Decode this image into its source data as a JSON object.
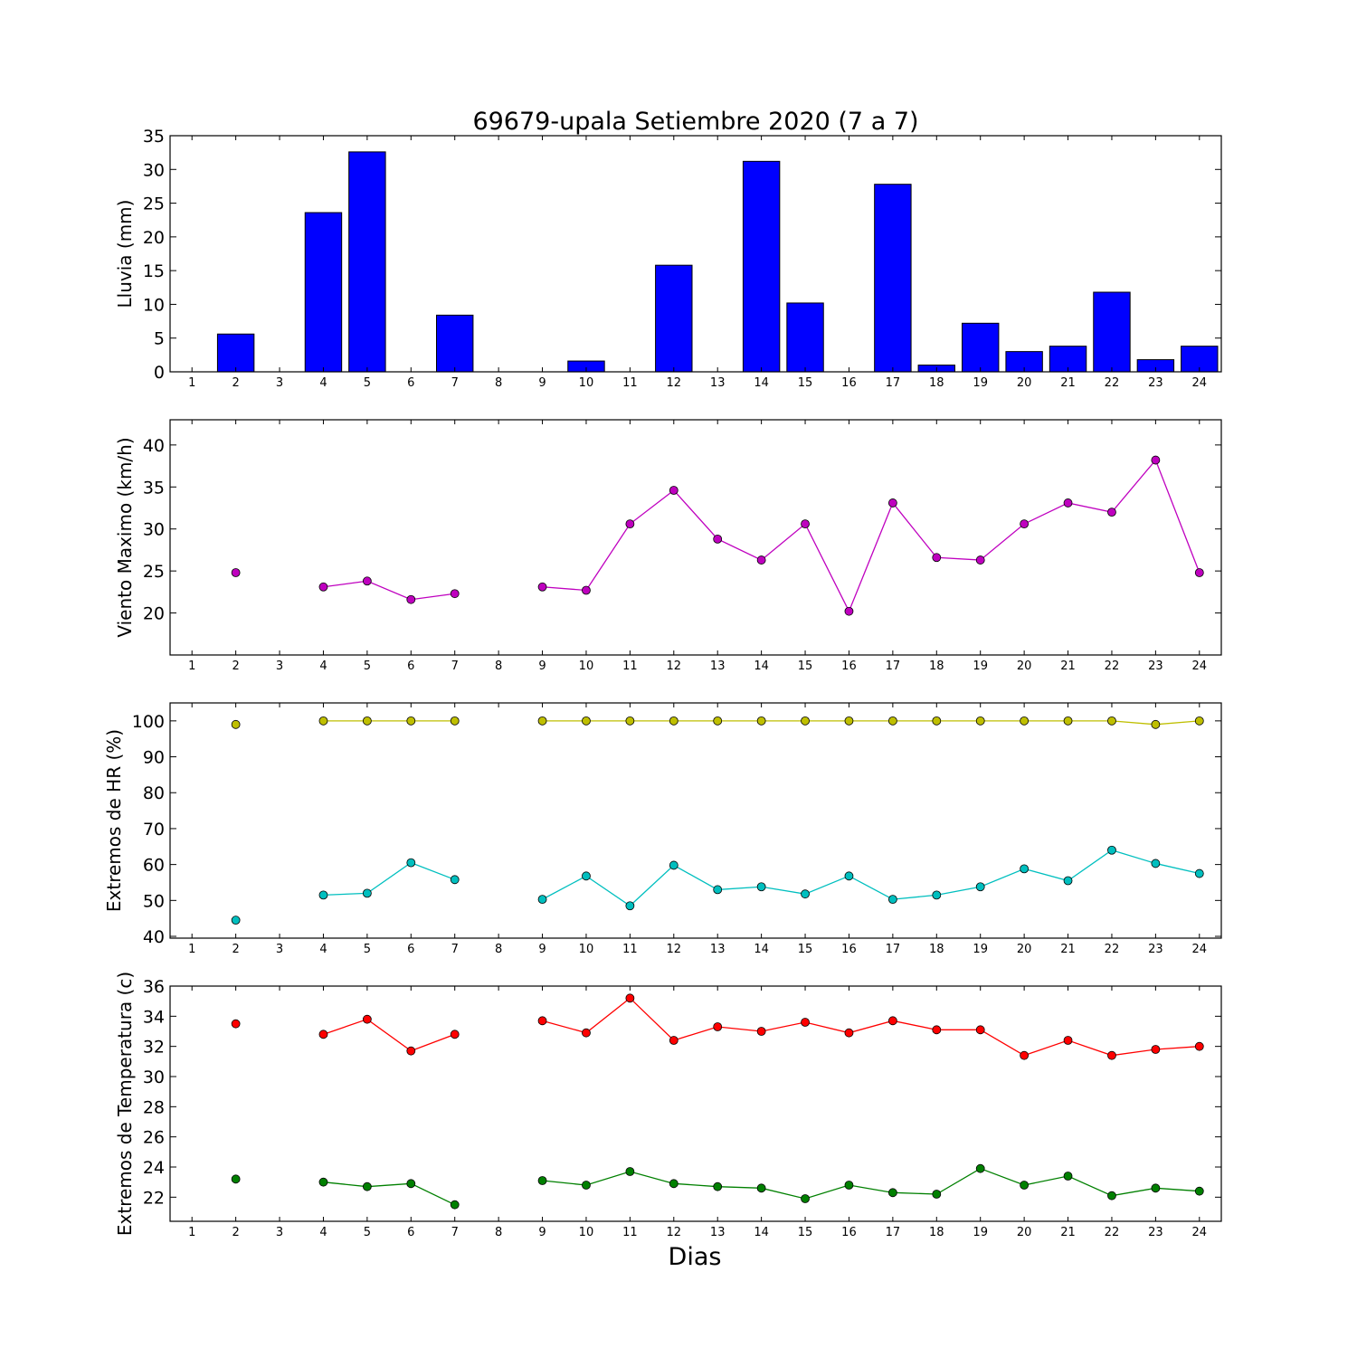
{
  "title": "69679-upala Setiembre 2020  (7 a 7)",
  "xlabel": "Dias",
  "chart_data": [
    {
      "type": "bar",
      "ylabel": "Lluvia (mm)",
      "categories": [
        1,
        2,
        3,
        4,
        5,
        6,
        7,
        8,
        9,
        10,
        11,
        12,
        13,
        14,
        15,
        16,
        17,
        18,
        19,
        20,
        21,
        22,
        23,
        24
      ],
      "ylim": [
        0,
        35
      ],
      "yticks": [
        0,
        5,
        10,
        15,
        20,
        25,
        30,
        35
      ],
      "grid": false,
      "series": [
        {
          "color": "#0000ff",
          "values": [
            0,
            5.6,
            0,
            23.6,
            32.6,
            0,
            8.4,
            0,
            0,
            1.6,
            0,
            15.8,
            0,
            31.2,
            10.2,
            0,
            27.8,
            1.0,
            7.2,
            3.0,
            3.8,
            11.8,
            1.8,
            3.8
          ]
        }
      ]
    },
    {
      "type": "line",
      "ylabel": "Viento Maximo (km/h)",
      "categories": [
        1,
        2,
        3,
        4,
        5,
        6,
        7,
        8,
        9,
        10,
        11,
        12,
        13,
        14,
        15,
        16,
        17,
        18,
        19,
        20,
        21,
        22,
        23,
        24
      ],
      "ylim": [
        15,
        43
      ],
      "yticks": [
        20,
        25,
        30,
        35,
        40
      ],
      "grid": false,
      "series": [
        {
          "color": "#bf00bf",
          "values": [
            null,
            24.8,
            null,
            23.1,
            23.8,
            21.6,
            22.3,
            null,
            23.1,
            22.7,
            30.6,
            34.6,
            28.8,
            26.3,
            30.6,
            20.2,
            33.1,
            26.6,
            26.3,
            30.6,
            33.1,
            32.0,
            38.2,
            24.8
          ]
        }
      ]
    },
    {
      "type": "line",
      "ylabel": "Extremos de HR (%)",
      "categories": [
        1,
        2,
        3,
        4,
        5,
        6,
        7,
        8,
        9,
        10,
        11,
        12,
        13,
        14,
        15,
        16,
        17,
        18,
        19,
        20,
        21,
        22,
        23,
        24
      ],
      "ylim": [
        39.5,
        105
      ],
      "yticks": [
        40,
        50,
        60,
        70,
        80,
        90,
        100
      ],
      "grid": false,
      "series": [
        {
          "color": "#bfbf00",
          "values": [
            null,
            99,
            null,
            100,
            100,
            100,
            100,
            null,
            100,
            100,
            100,
            100,
            100,
            100,
            100,
            100,
            100,
            100,
            100,
            100,
            100,
            100,
            99,
            100
          ]
        },
        {
          "color": "#00bfbf",
          "values": [
            null,
            44.5,
            null,
            51.5,
            52,
            60.5,
            55.8,
            null,
            50.3,
            56.8,
            48.5,
            59.8,
            53,
            53.8,
            51.8,
            56.8,
            50.3,
            51.5,
            53.8,
            58.8,
            55.5,
            64,
            60.3,
            57.5
          ]
        }
      ]
    },
    {
      "type": "line",
      "ylabel": "Extremos de Temperatura (c)",
      "categories": [
        1,
        2,
        3,
        4,
        5,
        6,
        7,
        8,
        9,
        10,
        11,
        12,
        13,
        14,
        15,
        16,
        17,
        18,
        19,
        20,
        21,
        22,
        23,
        24
      ],
      "ylim": [
        20.4,
        36
      ],
      "yticks": [
        22,
        24,
        26,
        28,
        30,
        32,
        34,
        36
      ],
      "grid": false,
      "series": [
        {
          "color": "#ff0000",
          "values": [
            null,
            33.5,
            null,
            32.8,
            33.8,
            31.7,
            32.8,
            null,
            33.7,
            32.9,
            35.2,
            32.4,
            33.3,
            33.0,
            33.6,
            32.9,
            33.7,
            33.1,
            33.1,
            31.4,
            32.4,
            31.4,
            31.8,
            32.0
          ]
        },
        {
          "color": "#008000",
          "values": [
            null,
            23.2,
            null,
            23.0,
            22.7,
            22.9,
            21.5,
            null,
            23.1,
            22.8,
            23.7,
            22.9,
            22.7,
            22.6,
            21.9,
            22.8,
            22.3,
            22.2,
            23.9,
            22.8,
            23.4,
            22.1,
            22.6,
            22.4
          ]
        }
      ]
    }
  ]
}
